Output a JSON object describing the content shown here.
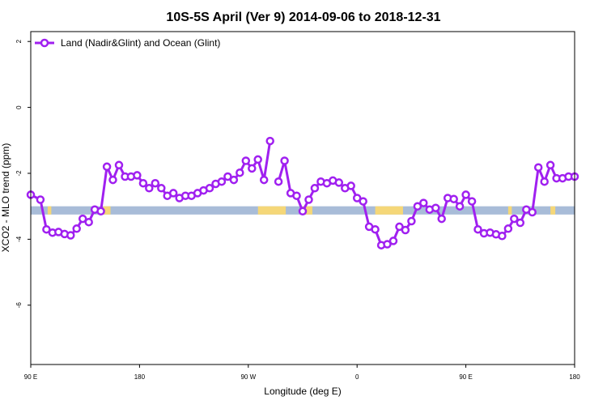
{
  "chart_data": {
    "type": "line",
    "title": "10S-5S April (Ver 9)   2014-09-06 to 2018-12-31",
    "xlabel": "Longitude (deg E)",
    "ylabel": "XCO2 - MLO trend (ppm)",
    "x_ticks": [
      {
        "value": 90,
        "label": "90 E"
      },
      {
        "value": 180,
        "label": "180"
      },
      {
        "value": 270,
        "label": "90 W"
      },
      {
        "value": 360,
        "label": "0"
      },
      {
        "value": 450,
        "label": "90 E"
      },
      {
        "value": 540,
        "label": "180"
      }
    ],
    "y_ticks": [
      2,
      0,
      -2,
      -4,
      -6
    ],
    "xlim": [
      90,
      540
    ],
    "ylim": [
      -7.8,
      2.3
    ],
    "grid": false,
    "legend_position": "top-left",
    "series": [
      {
        "name": "Land (Nadir&Glint) and Ocean (Glint)",
        "color": "#a020f0",
        "segments": [
          [
            [
              90,
              -2.65
            ],
            [
              98,
              -2.8
            ],
            [
              103,
              -3.7
            ],
            [
              108,
              -3.8
            ],
            [
              113,
              -3.78
            ],
            [
              118,
              -3.84
            ],
            [
              123,
              -3.88
            ],
            [
              128,
              -3.68
            ],
            [
              133,
              -3.38
            ],
            [
              138,
              -3.48
            ],
            [
              143,
              -3.1
            ],
            [
              148,
              -3.15
            ],
            [
              153,
              -1.8
            ],
            [
              158,
              -2.2
            ],
            [
              163,
              -1.75
            ],
            [
              168,
              -2.1
            ],
            [
              173,
              -2.1
            ],
            [
              178,
              -2.06
            ],
            [
              183,
              -2.3
            ],
            [
              188,
              -2.45
            ],
            [
              193,
              -2.3
            ],
            [
              198,
              -2.45
            ],
            [
              203,
              -2.68
            ],
            [
              208,
              -2.6
            ],
            [
              213,
              -2.75
            ],
            [
              218,
              -2.68
            ],
            [
              223,
              -2.68
            ],
            [
              228,
              -2.6
            ],
            [
              233,
              -2.52
            ],
            [
              238,
              -2.45
            ],
            [
              243,
              -2.32
            ],
            [
              248,
              -2.25
            ],
            [
              253,
              -2.1
            ],
            [
              258,
              -2.2
            ],
            [
              263,
              -1.98
            ],
            [
              268,
              -1.62
            ],
            [
              273,
              -1.85
            ],
            [
              278,
              -1.58
            ],
            [
              283,
              -2.2
            ],
            [
              288,
              -1.02
            ]
          ],
          [
            [
              295,
              -2.25
            ],
            [
              300,
              -1.62
            ],
            [
              305,
              -2.6
            ],
            [
              310,
              -2.68
            ],
            [
              315,
              -3.15
            ],
            [
              320,
              -2.8
            ],
            [
              325,
              -2.45
            ],
            [
              330,
              -2.25
            ],
            [
              335,
              -2.3
            ],
            [
              340,
              -2.22
            ],
            [
              345,
              -2.28
            ],
            [
              350,
              -2.45
            ],
            [
              355,
              -2.38
            ],
            [
              360,
              -2.75
            ],
            [
              365,
              -2.85
            ],
            [
              370,
              -3.62
            ],
            [
              375,
              -3.7
            ],
            [
              380,
              -4.18
            ],
            [
              385,
              -4.15
            ],
            [
              390,
              -4.05
            ],
            [
              395,
              -3.62
            ],
            [
              400,
              -3.72
            ],
            [
              405,
              -3.45
            ],
            [
              410,
              -3.0
            ],
            [
              415,
              -2.9
            ],
            [
              420,
              -3.1
            ],
            [
              425,
              -3.05
            ],
            [
              430,
              -3.38
            ],
            [
              435,
              -2.75
            ],
            [
              440,
              -2.78
            ],
            [
              445,
              -3.0
            ],
            [
              450,
              -2.65
            ],
            [
              455,
              -2.85
            ],
            [
              460,
              -3.7
            ],
            [
              465,
              -3.82
            ],
            [
              470,
              -3.8
            ],
            [
              475,
              -3.85
            ],
            [
              480,
              -3.9
            ],
            [
              485,
              -3.68
            ],
            [
              490,
              -3.38
            ],
            [
              495,
              -3.5
            ],
            [
              500,
              -3.1
            ],
            [
              505,
              -3.18
            ],
            [
              510,
              -1.82
            ],
            [
              515,
              -2.25
            ],
            [
              520,
              -1.75
            ],
            [
              525,
              -2.15
            ],
            [
              530,
              -2.15
            ],
            [
              535,
              -2.1
            ],
            [
              540,
              -2.1
            ]
          ]
        ]
      }
    ],
    "background_band": {
      "y_range": [
        -3.25,
        -3.0
      ],
      "colors": {
        "ocean": "#a8bcd8",
        "land": "#f5d778",
        "coast": "#d8c28a"
      },
      "land_spans": [
        [
          104,
          107
        ],
        [
          150,
          156
        ],
        [
          278,
          301
        ],
        [
          315,
          323
        ],
        [
          375,
          398
        ],
        [
          485,
          488
        ],
        [
          520,
          524
        ]
      ]
    }
  }
}
